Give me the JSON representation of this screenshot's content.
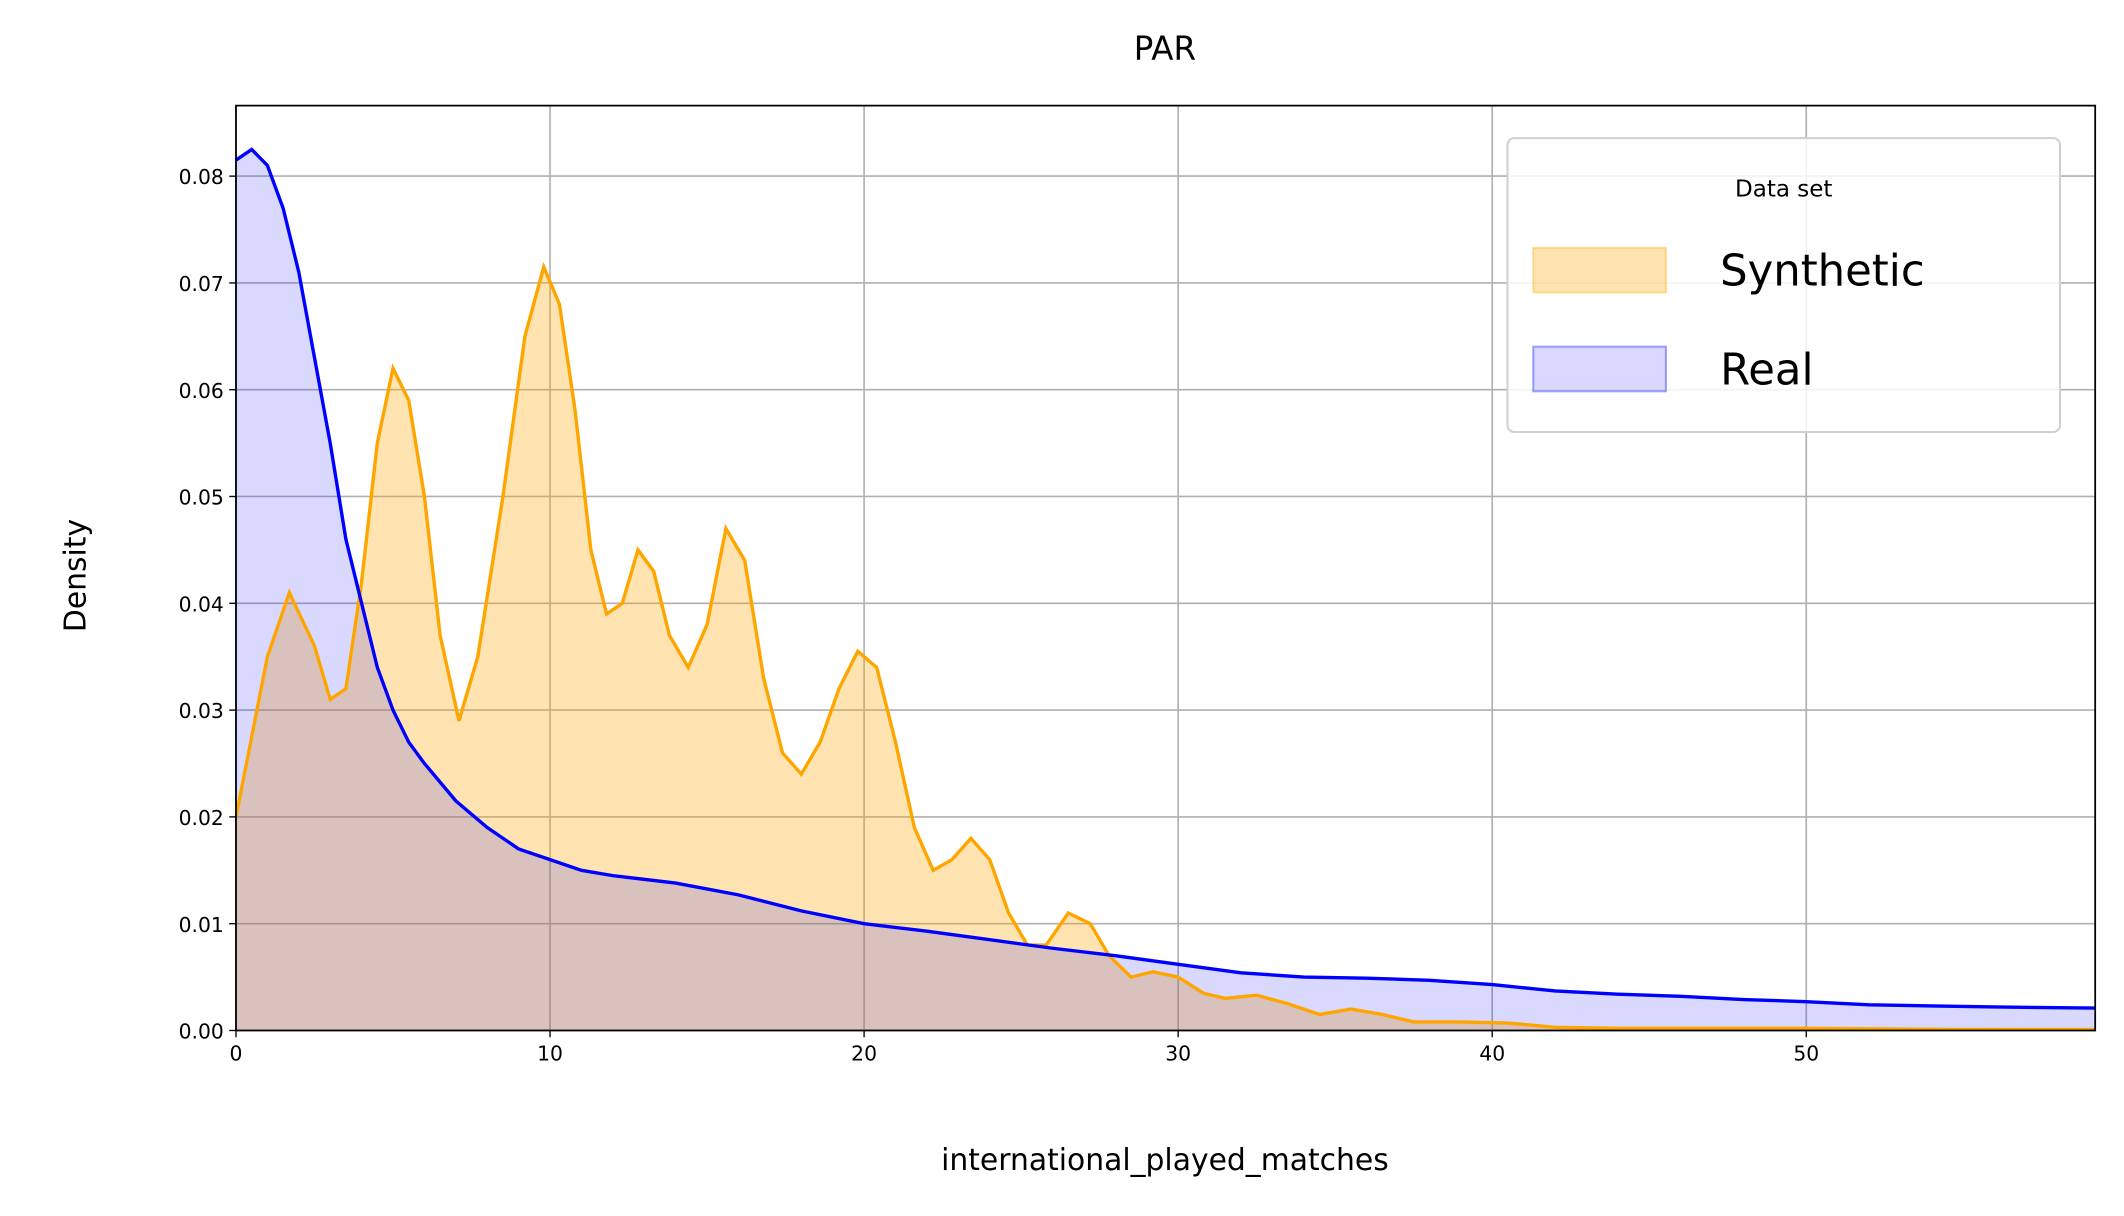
{
  "chart_data": {
    "type": "kde",
    "title": "PAR",
    "xlabel": "international_played_matches",
    "ylabel": "Density",
    "legend_title": "Data set",
    "legend_loc": "upper right",
    "grid": true,
    "xlim": [
      0,
      59.2
    ],
    "ylim": [
      0,
      0.0866
    ],
    "xticks": [
      0,
      10,
      20,
      30,
      40,
      50
    ],
    "yticks": [
      {
        "value": 0,
        "label": "0.00"
      },
      0.01,
      0.02,
      0.03,
      0.04,
      0.05,
      0.06,
      0.07,
      0.08
    ],
    "series": [
      {
        "name": "Synthetic",
        "color": "#ffa500",
        "x": [
          0,
          1,
          1.7,
          2.5,
          3,
          3.5,
          4,
          4.5,
          5,
          5.5,
          6,
          6.5,
          7.1,
          7.7,
          8.5,
          9.2,
          9.8,
          10.3,
          10.8,
          11.3,
          11.8,
          12.3,
          12.8,
          13.3,
          13.8,
          14.4,
          15,
          15.6,
          16.2,
          16.8,
          17.4,
          18,
          18.6,
          19.2,
          19.8,
          20.4,
          21,
          21.6,
          22.2,
          22.8,
          23.4,
          24,
          24.6,
          25.2,
          25.8,
          26.5,
          27.2,
          27.8,
          28.5,
          29.2,
          30,
          30.8,
          31.5,
          32.5,
          33.5,
          34.5,
          35.5,
          36.5,
          37.5,
          39,
          40.5,
          42,
          44,
          47,
          50,
          55,
          59.2
        ],
        "values": [
          0.02,
          0.035,
          0.041,
          0.036,
          0.031,
          0.032,
          0.042,
          0.055,
          0.062,
          0.059,
          0.05,
          0.037,
          0.029,
          0.035,
          0.05,
          0.065,
          0.0715,
          0.068,
          0.058,
          0.045,
          0.039,
          0.04,
          0.045,
          0.043,
          0.037,
          0.034,
          0.038,
          0.047,
          0.044,
          0.033,
          0.026,
          0.024,
          0.027,
          0.032,
          0.0355,
          0.034,
          0.027,
          0.019,
          0.015,
          0.016,
          0.018,
          0.016,
          0.011,
          0.008,
          0.008,
          0.011,
          0.01,
          0.007,
          0.005,
          0.0055,
          0.005,
          0.0035,
          0.003,
          0.0033,
          0.0025,
          0.0015,
          0.002,
          0.0015,
          0.0008,
          0.0008,
          0.0007,
          0.0003,
          0.0002,
          0.0002,
          0.0002,
          0.0001,
          0.0001
        ]
      },
      {
        "name": "Real",
        "color": "#0000ff",
        "x": [
          0,
          0.5,
          1,
          1.5,
          2,
          2.5,
          3,
          3.5,
          4,
          4.5,
          5,
          5.5,
          6,
          7,
          8,
          9,
          10,
          11,
          12,
          14,
          16,
          18,
          20,
          22,
          24,
          26,
          28,
          30,
          32,
          34,
          36,
          38,
          40,
          42,
          44,
          46,
          48,
          50,
          52,
          54,
          56,
          59.2
        ],
        "values": [
          0.0815,
          0.0825,
          0.081,
          0.077,
          0.071,
          0.063,
          0.055,
          0.046,
          0.04,
          0.034,
          0.03,
          0.027,
          0.025,
          0.0215,
          0.019,
          0.017,
          0.016,
          0.015,
          0.0145,
          0.0138,
          0.0127,
          0.0112,
          0.01,
          0.0093,
          0.0085,
          0.0077,
          0.007,
          0.0062,
          0.0054,
          0.005,
          0.0049,
          0.0047,
          0.0043,
          0.0037,
          0.0034,
          0.0032,
          0.0029,
          0.0027,
          0.0024,
          0.0023,
          0.0022,
          0.0021
        ]
      }
    ]
  }
}
